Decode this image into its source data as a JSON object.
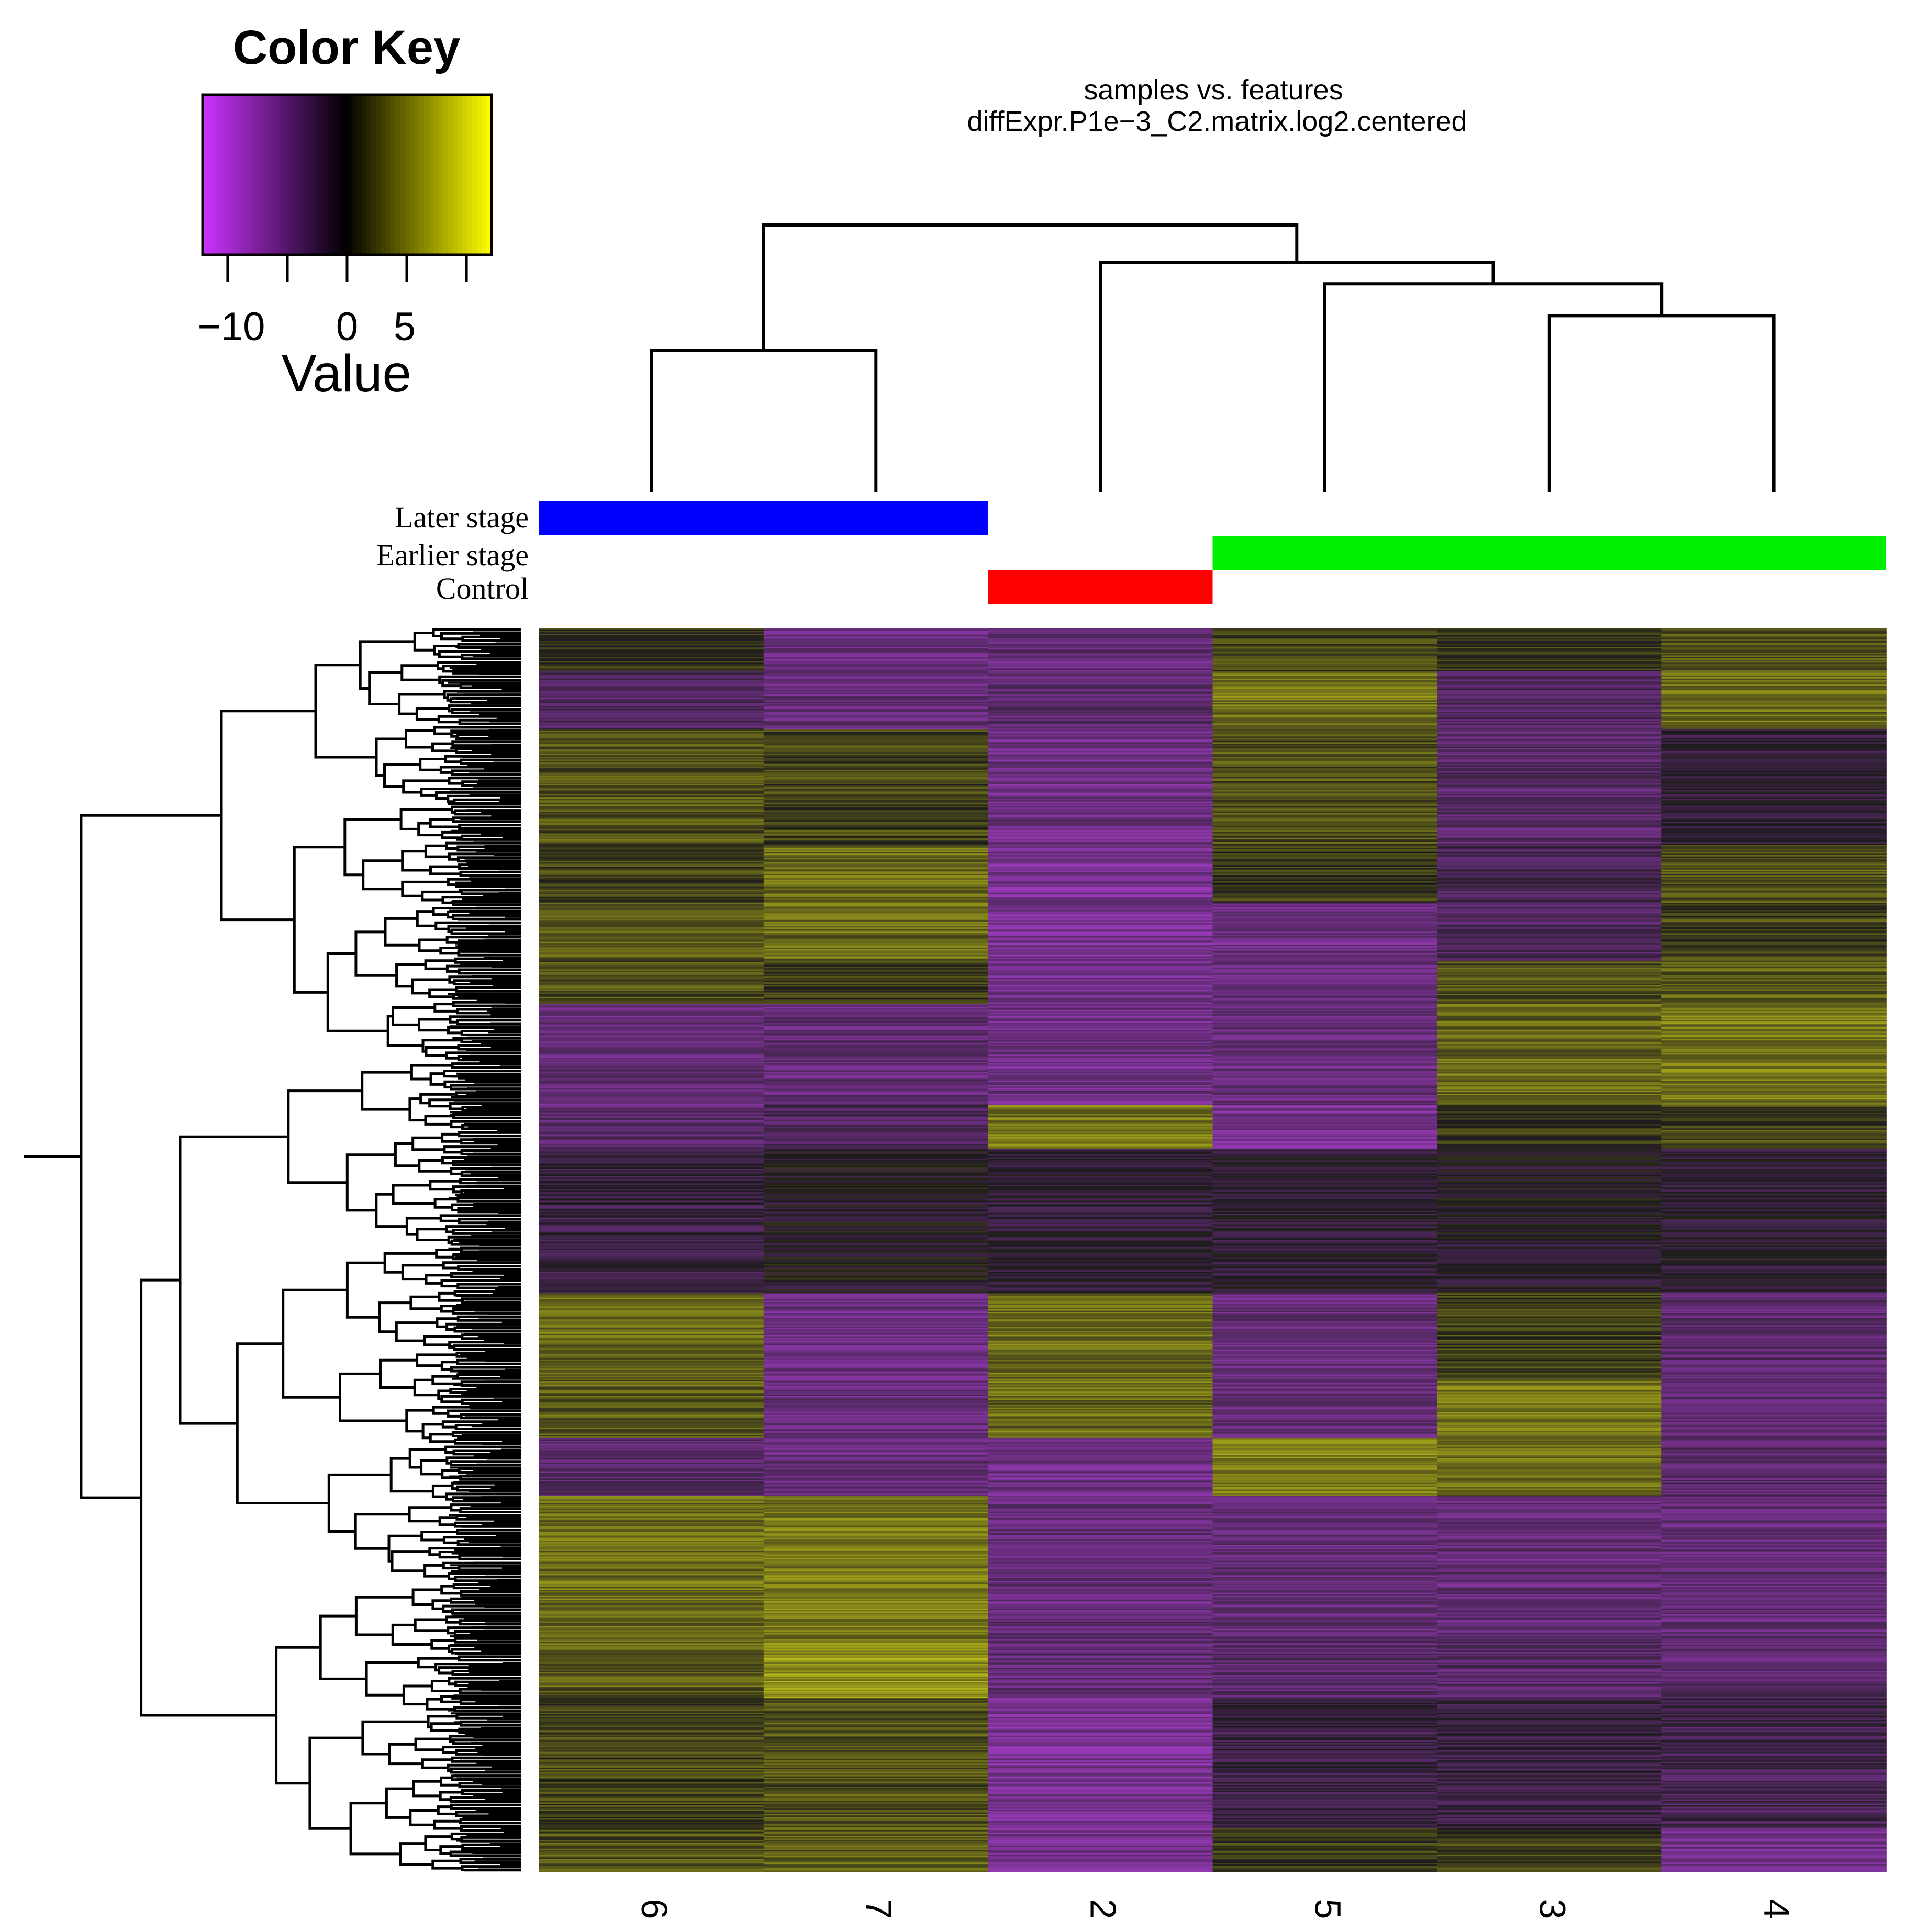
{
  "chart_data": {
    "type": "heatmap",
    "title": "samples vs. features",
    "subtitle": "diffExpr.P1e−3_C2.matrix.log2.centered",
    "columns": [
      "6",
      "7",
      "2",
      "5",
      "3",
      "4"
    ],
    "color_key": {
      "title": "Color Key",
      "xlabel": "Value",
      "range": [
        -13,
        13
      ],
      "ticks": [
        -10,
        -5,
        0,
        5,
        10
      ],
      "tick_labels": [
        "−10",
        "0",
        "5"
      ],
      "low_color": "#cc33ff",
      "mid_color": "#000000",
      "high_color": "#ffff00"
    },
    "annotations": {
      "labels": [
        "Later stage",
        "Earlier stage",
        "Control"
      ],
      "bars": [
        {
          "group": "Later stage",
          "columns": [
            "6",
            "7"
          ],
          "color": "#0000ff"
        },
        {
          "group": "Earlier stage",
          "columns": [
            "5",
            "3",
            "4"
          ],
          "color": "#00ee00"
        },
        {
          "group": "Control",
          "columns": [
            "2"
          ],
          "color": "#ff0000"
        }
      ]
    },
    "column_dendrogram": {
      "merges": [
        {
          "left": "6",
          "right": "7",
          "height": 0.53
        },
        {
          "left": "3",
          "right": "4",
          "height": 0.66
        },
        {
          "left": "5",
          "right": "3+4",
          "height": 0.78
        },
        {
          "left": "2",
          "right": "5+3+4",
          "height": 0.86
        },
        {
          "left": "6+7",
          "right": "2+5+3+4",
          "height": 1.0
        }
      ]
    },
    "row_blocks": {
      "note": "approximate cluster blocks read top to bottom; values are mean log2 centered per sample column",
      "blocks": [
        {
          "weight": 3,
          "values": [
            1.5,
            -8,
            -7,
            3,
            2,
            4
          ]
        },
        {
          "weight": 4,
          "values": [
            -5,
            -7,
            -6,
            7,
            -5,
            6
          ]
        },
        {
          "weight": 8,
          "values": [
            4,
            3,
            -8,
            4,
            -6,
            -2
          ]
        },
        {
          "weight": 4,
          "values": [
            3,
            6,
            -9,
            2,
            -4,
            4
          ]
        },
        {
          "weight": 4,
          "values": [
            5,
            6,
            -9,
            -8,
            -5,
            3
          ]
        },
        {
          "weight": 3,
          "values": [
            4,
            2,
            -8,
            -7,
            4,
            5
          ]
        },
        {
          "weight": 7,
          "values": [
            -7,
            -7,
            -8,
            -7,
            6,
            7
          ]
        },
        {
          "weight": 3,
          "values": [
            -6,
            -5,
            7,
            -9,
            2,
            3
          ]
        },
        {
          "weight": 10,
          "values": [
            -3,
            -1,
            -2,
            -2,
            -1,
            -2
          ]
        },
        {
          "weight": 6,
          "values": [
            6,
            -8,
            6,
            -7,
            3,
            -6
          ]
        },
        {
          "weight": 4,
          "values": [
            5,
            -7,
            6,
            -7,
            7,
            -6
          ]
        },
        {
          "weight": 4,
          "values": [
            -6,
            -7,
            -8,
            8,
            6,
            -6
          ]
        },
        {
          "weight": 10,
          "values": [
            6,
            7,
            -7,
            -7,
            -7,
            -7
          ]
        },
        {
          "weight": 4,
          "values": [
            5,
            9,
            -7,
            -6,
            -6,
            -6
          ]
        },
        {
          "weight": 9,
          "values": [
            3,
            4,
            -9,
            -3,
            -3,
            -4
          ]
        },
        {
          "weight": 3,
          "values": [
            4,
            5,
            -9,
            2,
            3,
            -8
          ]
        }
      ]
    }
  }
}
